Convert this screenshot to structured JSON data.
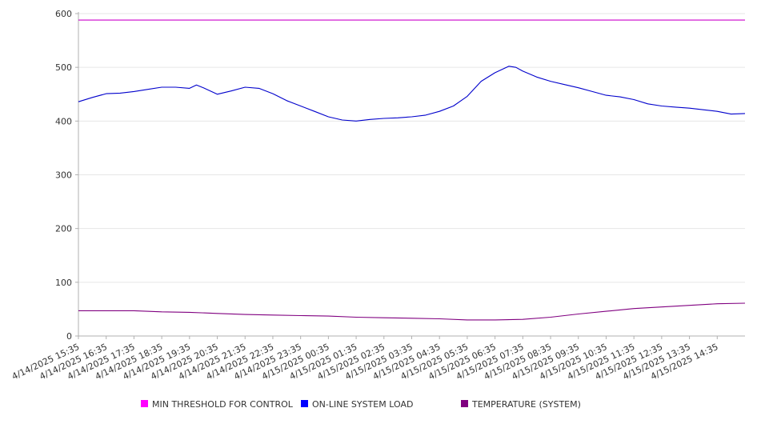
{
  "chart_data": {
    "type": "line",
    "title": "",
    "xlabel": "",
    "ylabel": "",
    "ylim": [
      0,
      600
    ],
    "yticks": [
      0,
      100,
      200,
      300,
      400,
      500,
      600
    ],
    "x_tick_labels": [
      "4/14/2025 15:35",
      "4/14/2025 16:35",
      "4/14/2025 17:35",
      "4/14/2025 18:35",
      "4/14/2025 19:35",
      "4/14/2025 20:35",
      "4/14/2025 21:35",
      "4/14/2025 22:35",
      "4/14/2025 23:35",
      "4/15/2025 00:35",
      "4/15/2025 01:35",
      "4/15/2025 02:35",
      "4/15/2025 03:35",
      "4/15/2025 04:35",
      "4/15/2025 05:35",
      "4/15/2025 06:35",
      "4/15/2025 07:35",
      "4/15/2025 08:35",
      "4/15/2025 09:35",
      "4/15/2025 10:35",
      "4/15/2025 11:35",
      "4/15/2025 12:35",
      "4/15/2025 13:35",
      "4/15/2025 14:35"
    ],
    "x_range": [
      "4/14/2025 15:35",
      "4/15/2025 15:35"
    ],
    "grid": "horizontal",
    "legend_position": "bottom",
    "series": [
      {
        "name": "MIN THRESHOLD FOR CONTROL",
        "color": "#cc00cc",
        "legend_color": "#ff00ff",
        "x": [
          "4/14/2025 15:35",
          "4/15/2025 15:35"
        ],
        "values": [
          588,
          588
        ]
      },
      {
        "name": "ON-LINE SYSTEM LOAD",
        "color": "#0000cc",
        "legend_color": "#0000ff",
        "x": [
          "4/14/2025 15:35",
          "4/14/2025 16:05",
          "4/14/2025 16:35",
          "4/14/2025 17:05",
          "4/14/2025 17:35",
          "4/14/2025 18:05",
          "4/14/2025 18:35",
          "4/14/2025 19:05",
          "4/14/2025 19:35",
          "4/14/2025 19:50",
          "4/14/2025 20:05",
          "4/14/2025 20:35",
          "4/14/2025 21:05",
          "4/14/2025 21:35",
          "4/14/2025 22:05",
          "4/14/2025 22:35",
          "4/14/2025 23:05",
          "4/14/2025 23:35",
          "4/15/2025 00:05",
          "4/15/2025 00:35",
          "4/15/2025 01:05",
          "4/15/2025 01:35",
          "4/15/2025 02:05",
          "4/15/2025 02:35",
          "4/15/2025 03:05",
          "4/15/2025 03:35",
          "4/15/2025 04:05",
          "4/15/2025 04:35",
          "4/15/2025 05:05",
          "4/15/2025 05:35",
          "4/15/2025 06:05",
          "4/15/2025 06:35",
          "4/15/2025 07:05",
          "4/15/2025 07:20",
          "4/15/2025 07:35",
          "4/15/2025 08:05",
          "4/15/2025 08:35",
          "4/15/2025 09:05",
          "4/15/2025 09:35",
          "4/15/2025 10:05",
          "4/15/2025 10:35",
          "4/15/2025 11:05",
          "4/15/2025 11:35",
          "4/15/2025 12:05",
          "4/15/2025 12:35",
          "4/15/2025 13:05",
          "4/15/2025 13:35",
          "4/15/2025 14:05",
          "4/15/2025 14:35",
          "4/15/2025 15:05",
          "4/15/2025 15:35"
        ],
        "values": [
          436,
          444,
          451,
          452,
          455,
          459,
          463,
          463,
          461,
          467,
          462,
          450,
          456,
          463,
          461,
          451,
          438,
          428,
          418,
          408,
          402,
          400,
          403,
          405,
          406,
          408,
          411,
          418,
          428,
          446,
          474,
          490,
          502,
          500,
          493,
          482,
          474,
          468,
          462,
          455,
          448,
          445,
          440,
          432,
          428,
          426,
          424,
          421,
          418,
          413,
          414
        ]
      },
      {
        "name": "TEMPERATURE (SYSTEM)",
        "color": "#800080",
        "legend_color": "#800080",
        "x": [
          "4/14/2025 15:35",
          "4/14/2025 16:35",
          "4/14/2025 17:35",
          "4/14/2025 18:35",
          "4/14/2025 19:35",
          "4/14/2025 20:35",
          "4/14/2025 21:35",
          "4/14/2025 22:35",
          "4/14/2025 23:35",
          "4/15/2025 00:35",
          "4/15/2025 01:35",
          "4/15/2025 02:35",
          "4/15/2025 03:35",
          "4/15/2025 04:35",
          "4/15/2025 05:35",
          "4/15/2025 06:35",
          "4/15/2025 07:35",
          "4/15/2025 08:35",
          "4/15/2025 09:35",
          "4/15/2025 10:35",
          "4/15/2025 11:35",
          "4/15/2025 12:35",
          "4/15/2025 13:35",
          "4/15/2025 14:35",
          "4/15/2025 15:35"
        ],
        "values": [
          47,
          47,
          47,
          45,
          44,
          42,
          40,
          39,
          38,
          37,
          35,
          34,
          33,
          32,
          30,
          30,
          31,
          35,
          41,
          46,
          51,
          54,
          57,
          60,
          61
        ]
      }
    ]
  }
}
